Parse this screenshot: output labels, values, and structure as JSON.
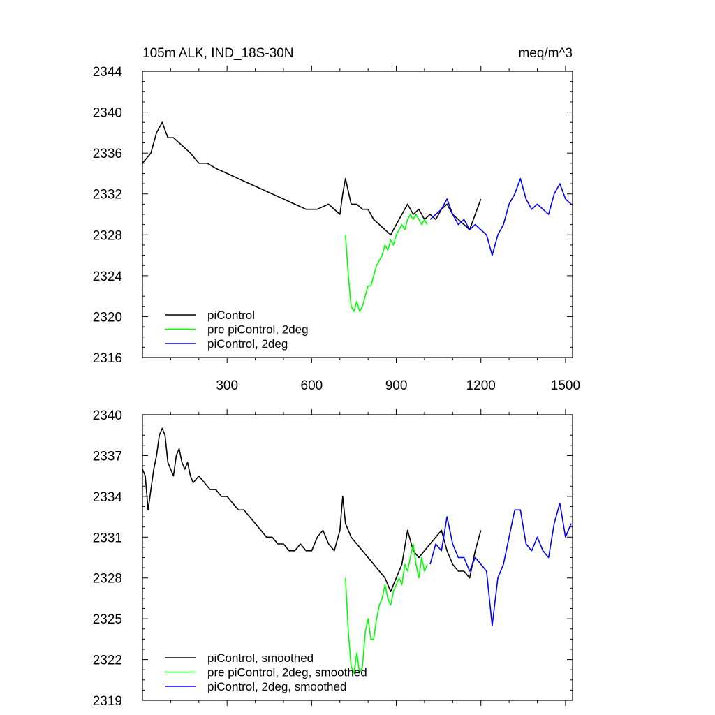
{
  "title_left": "105m ALK, IND_18S-30N",
  "title_right": "meq/m^3",
  "colors": {
    "piControl": "#000000",
    "pre_piControl_2deg": "#00ff00",
    "piControl_2deg": "#0000ff"
  },
  "chart_data": [
    {
      "type": "line",
      "panel": "top",
      "xlim": [
        0,
        1525
      ],
      "ylim": [
        2316,
        2344
      ],
      "x_ticks": [
        300,
        600,
        900,
        1200,
        1500
      ],
      "x_tick_labels": [
        "300",
        "600",
        "900",
        "1200",
        "1500"
      ],
      "y_ticks": [
        2316,
        2320,
        2324,
        2328,
        2332,
        2336,
        2340,
        2344
      ],
      "y_tick_labels": [
        "2316",
        "2320",
        "2324",
        "2328",
        "2332",
        "2336",
        "2340",
        "2344"
      ],
      "legend_position": "bottom-left",
      "series": [
        {
          "name": "piControl",
          "key": "piControl",
          "x": [
            0,
            30,
            50,
            70,
            90,
            110,
            130,
            150,
            170,
            200,
            230,
            260,
            300,
            340,
            380,
            420,
            460,
            500,
            540,
            580,
            620,
            660,
            700,
            710,
            720,
            740,
            760,
            780,
            800,
            820,
            840,
            860,
            880,
            900,
            920,
            940,
            960,
            980,
            1000,
            1020,
            1040,
            1060,
            1080,
            1100,
            1120,
            1140,
            1160,
            1180,
            1200
          ],
          "values": [
            2335,
            2336,
            2338,
            2339,
            2337.5,
            2337.5,
            2337,
            2336.5,
            2336,
            2335,
            2335,
            2334.5,
            2334,
            2333.5,
            2333,
            2332.5,
            2332,
            2331.5,
            2331,
            2330.5,
            2330.5,
            2331,
            2330,
            2332,
            2333.5,
            2331,
            2331,
            2330.5,
            2330.5,
            2329.5,
            2329,
            2328.5,
            2328,
            2329,
            2330,
            2331,
            2330,
            2330.5,
            2329.5,
            2330,
            2329.5,
            2330.5,
            2331,
            2330,
            2329.5,
            2329,
            2328.5,
            2330,
            2331.5
          ]
        },
        {
          "name": "pre piControl, 2deg",
          "key": "pre_piControl_2deg",
          "x": [
            720,
            730,
            740,
            750,
            760,
            770,
            780,
            790,
            800,
            810,
            820,
            830,
            840,
            850,
            860,
            870,
            880,
            890,
            900,
            910,
            920,
            930,
            940,
            950,
            960,
            970,
            980,
            990,
            1000,
            1010
          ],
          "values": [
            2328,
            2324,
            2321,
            2320.5,
            2321.5,
            2320.5,
            2321,
            2322,
            2323,
            2323,
            2324,
            2325,
            2325.5,
            2326,
            2327,
            2326.5,
            2327.5,
            2327,
            2328,
            2328.5,
            2329,
            2328.5,
            2329.5,
            2330,
            2329.5,
            2330,
            2329.5,
            2329,
            2329.5,
            2329
          ]
        },
        {
          "name": "piControl, 2deg",
          "key": "piControl_2deg",
          "x": [
            1020,
            1040,
            1060,
            1080,
            1100,
            1120,
            1140,
            1160,
            1180,
            1200,
            1220,
            1240,
            1260,
            1280,
            1300,
            1320,
            1340,
            1360,
            1380,
            1400,
            1420,
            1440,
            1460,
            1480,
            1500,
            1520
          ],
          "values": [
            2329.5,
            2330,
            2330.5,
            2331.5,
            2330,
            2329,
            2329.5,
            2328.5,
            2329,
            2328.5,
            2328,
            2326,
            2328,
            2329,
            2331,
            2332,
            2333.5,
            2331.5,
            2330.5,
            2331,
            2330.5,
            2330,
            2332,
            2333,
            2331.5,
            2331
          ]
        }
      ]
    },
    {
      "type": "line",
      "panel": "bottom",
      "xlim": [
        0,
        1525
      ],
      "ylim": [
        2319,
        2340
      ],
      "x_ticks": [
        300,
        600,
        900,
        1200,
        1500
      ],
      "y_ticks": [
        2319,
        2322,
        2325,
        2328,
        2331,
        2334,
        2337,
        2340
      ],
      "y_tick_labels": [
        "2319",
        "2322",
        "2325",
        "2328",
        "2331",
        "2334",
        "2337",
        "2340"
      ],
      "legend_position": "bottom-left",
      "series": [
        {
          "name": "piControl, smoothed",
          "key": "piControl",
          "x": [
            0,
            10,
            20,
            30,
            40,
            50,
            60,
            70,
            80,
            90,
            100,
            110,
            120,
            130,
            140,
            150,
            160,
            170,
            180,
            200,
            220,
            240,
            260,
            280,
            300,
            320,
            340,
            360,
            380,
            400,
            420,
            440,
            460,
            480,
            500,
            520,
            540,
            560,
            580,
            600,
            620,
            640,
            660,
            680,
            700,
            710,
            720,
            740,
            760,
            780,
            800,
            820,
            840,
            860,
            880,
            900,
            920,
            940,
            960,
            980,
            1000,
            1020,
            1040,
            1060,
            1080,
            1100,
            1120,
            1140,
            1160,
            1180,
            1200
          ],
          "values": [
            2336,
            2335.5,
            2333,
            2334.5,
            2336,
            2337,
            2338.5,
            2339,
            2338.5,
            2336.5,
            2336,
            2335.5,
            2337,
            2337.5,
            2336.5,
            2336,
            2336.5,
            2335.5,
            2335,
            2335.5,
            2335,
            2334.5,
            2334.5,
            2334,
            2334,
            2333.5,
            2333,
            2333,
            2332.5,
            2332,
            2331.5,
            2331,
            2331,
            2330.5,
            2330.5,
            2330,
            2330,
            2330.5,
            2330,
            2330,
            2331,
            2331.5,
            2330.5,
            2330,
            2331.5,
            2334,
            2332,
            2331,
            2330.5,
            2330,
            2329.5,
            2329,
            2328.5,
            2328,
            2327,
            2328,
            2329,
            2331.5,
            2330,
            2329.5,
            2330,
            2330.5,
            2331,
            2331.5,
            2330,
            2329,
            2328.5,
            2328.5,
            2328,
            2330,
            2331.5
          ]
        },
        {
          "name": "pre piControl, 2deg, smoothed",
          "key": "pre_piControl_2deg",
          "x": [
            720,
            730,
            740,
            750,
            760,
            770,
            780,
            790,
            800,
            810,
            820,
            830,
            840,
            850,
            860,
            870,
            880,
            890,
            900,
            910,
            920,
            930,
            940,
            950,
            960,
            970,
            980,
            990,
            1000,
            1010
          ],
          "values": [
            2328,
            2324,
            2321.5,
            2321,
            2322.5,
            2321,
            2321.5,
            2324,
            2325,
            2323.5,
            2323.5,
            2325,
            2326,
            2326.5,
            2327.5,
            2326.5,
            2326,
            2327,
            2327.5,
            2328,
            2327.5,
            2329,
            2328.5,
            2329.5,
            2330.5,
            2329,
            2328,
            2329.5,
            2328.5,
            2329
          ]
        },
        {
          "name": "piControl, 2deg, smoothed",
          "key": "piControl_2deg",
          "x": [
            1020,
            1040,
            1060,
            1080,
            1100,
            1120,
            1140,
            1160,
            1180,
            1200,
            1220,
            1240,
            1260,
            1280,
            1300,
            1320,
            1340,
            1360,
            1380,
            1400,
            1420,
            1440,
            1460,
            1480,
            1500,
            1520
          ],
          "values": [
            2329,
            2330.5,
            2330,
            2332.5,
            2330.5,
            2329.5,
            2329.5,
            2328.5,
            2329.5,
            2329,
            2328.5,
            2324.5,
            2328,
            2329,
            2331,
            2333,
            2333,
            2330.5,
            2330,
            2331,
            2330,
            2329.5,
            2332,
            2333.5,
            2331,
            2332
          ]
        }
      ]
    }
  ]
}
